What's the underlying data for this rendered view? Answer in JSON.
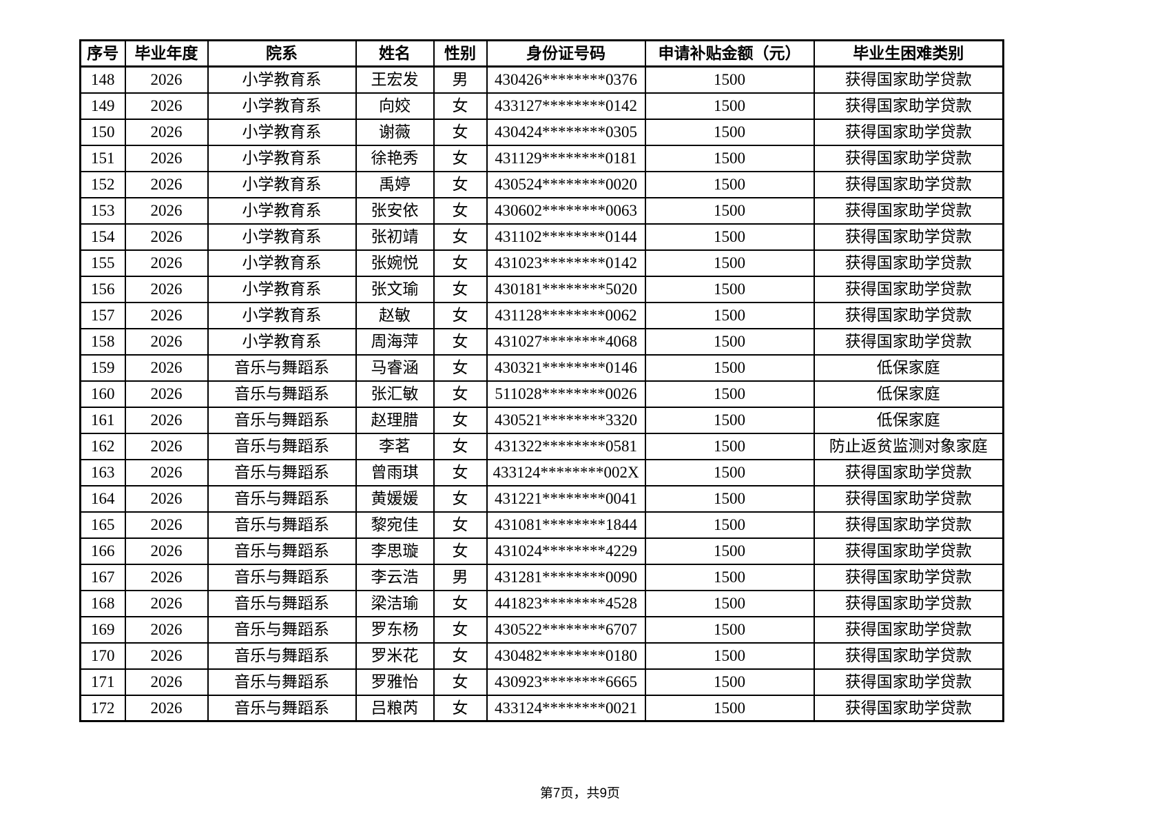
{
  "document": {
    "table": {
      "columns": [
        {
          "key": "index",
          "label": "序号"
        },
        {
          "key": "year",
          "label": "毕业年度"
        },
        {
          "key": "department",
          "label": "院系"
        },
        {
          "key": "name",
          "label": "姓名"
        },
        {
          "key": "gender",
          "label": "性别"
        },
        {
          "key": "id-number",
          "label": "身份证号码"
        },
        {
          "key": "amount",
          "label": "申请补贴金额（元）"
        },
        {
          "key": "category",
          "label": "毕业生困难类别"
        }
      ],
      "rows": [
        [
          "148",
          "2026",
          "小学教育系",
          "王宏发",
          "男",
          "430426********0376",
          "1500",
          "获得国家助学贷款"
        ],
        [
          "149",
          "2026",
          "小学教育系",
          "向姣",
          "女",
          "433127********0142",
          "1500",
          "获得国家助学贷款"
        ],
        [
          "150",
          "2026",
          "小学教育系",
          "谢薇",
          "女",
          "430424********0305",
          "1500",
          "获得国家助学贷款"
        ],
        [
          "151",
          "2026",
          "小学教育系",
          "徐艳秀",
          "女",
          "431129********0181",
          "1500",
          "获得国家助学贷款"
        ],
        [
          "152",
          "2026",
          "小学教育系",
          "禹婷",
          "女",
          "430524********0020",
          "1500",
          "获得国家助学贷款"
        ],
        [
          "153",
          "2026",
          "小学教育系",
          "张安依",
          "女",
          "430602********0063",
          "1500",
          "获得国家助学贷款"
        ],
        [
          "154",
          "2026",
          "小学教育系",
          "张初靖",
          "女",
          "431102********0144",
          "1500",
          "获得国家助学贷款"
        ],
        [
          "155",
          "2026",
          "小学教育系",
          "张婉悦",
          "女",
          "431023********0142",
          "1500",
          "获得国家助学贷款"
        ],
        [
          "156",
          "2026",
          "小学教育系",
          "张文瑜",
          "女",
          "430181********5020",
          "1500",
          "获得国家助学贷款"
        ],
        [
          "157",
          "2026",
          "小学教育系",
          "赵敏",
          "女",
          "431128********0062",
          "1500",
          "获得国家助学贷款"
        ],
        [
          "158",
          "2026",
          "小学教育系",
          "周海萍",
          "女",
          "431027********4068",
          "1500",
          "获得国家助学贷款"
        ],
        [
          "159",
          "2026",
          "音乐与舞蹈系",
          "马睿涵",
          "女",
          "430321********0146",
          "1500",
          "低保家庭"
        ],
        [
          "160",
          "2026",
          "音乐与舞蹈系",
          "张汇敏",
          "女",
          "511028********0026",
          "1500",
          "低保家庭"
        ],
        [
          "161",
          "2026",
          "音乐与舞蹈系",
          "赵理腊",
          "女",
          "430521********3320",
          "1500",
          "低保家庭"
        ],
        [
          "162",
          "2026",
          "音乐与舞蹈系",
          "李茗",
          "女",
          "431322********0581",
          "1500",
          "防止返贫监测对象家庭"
        ],
        [
          "163",
          "2026",
          "音乐与舞蹈系",
          "曾雨琪",
          "女",
          "433124********002X",
          "1500",
          "获得国家助学贷款"
        ],
        [
          "164",
          "2026",
          "音乐与舞蹈系",
          "黄媛媛",
          "女",
          "431221********0041",
          "1500",
          "获得国家助学贷款"
        ],
        [
          "165",
          "2026",
          "音乐与舞蹈系",
          "黎宛佳",
          "女",
          "431081********1844",
          "1500",
          "获得国家助学贷款"
        ],
        [
          "166",
          "2026",
          "音乐与舞蹈系",
          "李思璇",
          "女",
          "431024********4229",
          "1500",
          "获得国家助学贷款"
        ],
        [
          "167",
          "2026",
          "音乐与舞蹈系",
          "李云浩",
          "男",
          "431281********0090",
          "1500",
          "获得国家助学贷款"
        ],
        [
          "168",
          "2026",
          "音乐与舞蹈系",
          "梁洁瑜",
          "女",
          "441823********4528",
          "1500",
          "获得国家助学贷款"
        ],
        [
          "169",
          "2026",
          "音乐与舞蹈系",
          "罗东杨",
          "女",
          "430522********6707",
          "1500",
          "获得国家助学贷款"
        ],
        [
          "170",
          "2026",
          "音乐与舞蹈系",
          "罗米花",
          "女",
          "430482********0180",
          "1500",
          "获得国家助学贷款"
        ],
        [
          "171",
          "2026",
          "音乐与舞蹈系",
          "罗雅怡",
          "女",
          "430923********6665",
          "1500",
          "获得国家助学贷款"
        ],
        [
          "172",
          "2026",
          "音乐与舞蹈系",
          "吕粮芮",
          "女",
          "433124********0021",
          "1500",
          "获得国家助学贷款"
        ]
      ]
    },
    "footer": {
      "page_text": "第7页，共9页"
    }
  },
  "colors": {
    "background": "#ffffff",
    "text": "#000000",
    "border": "#000000"
  }
}
